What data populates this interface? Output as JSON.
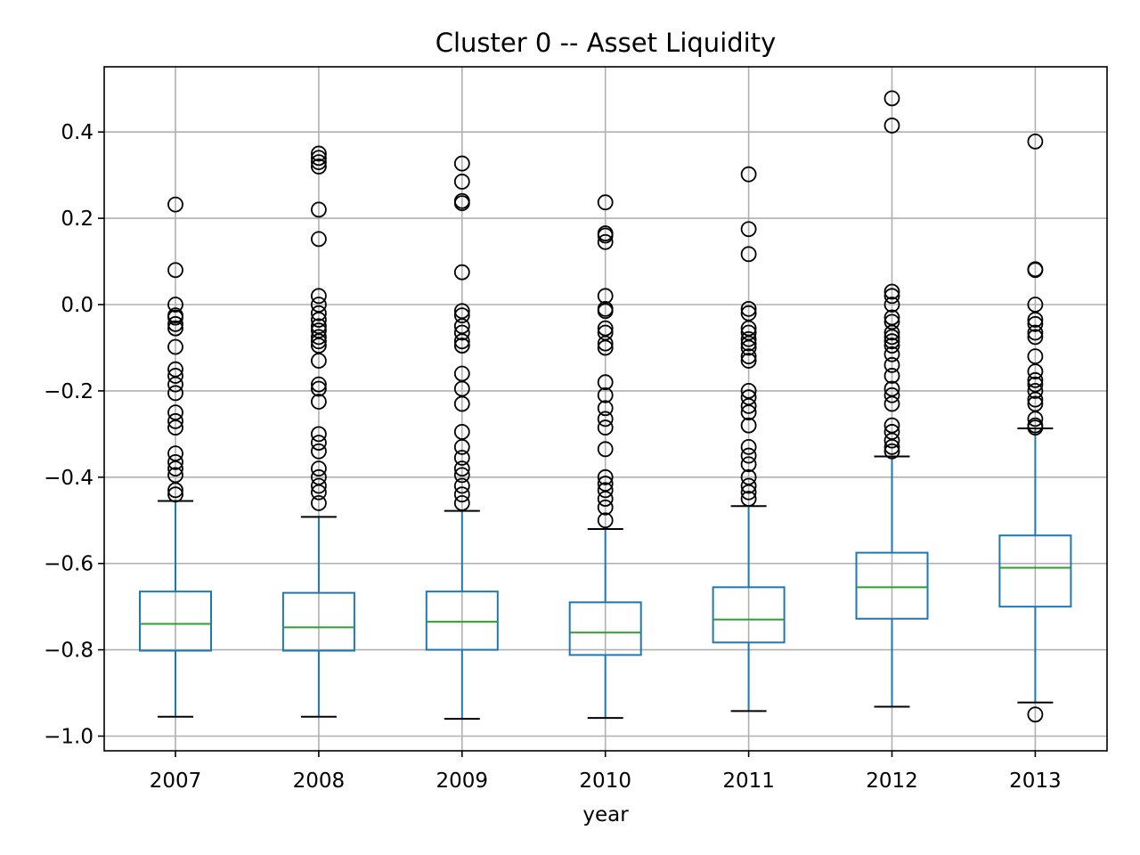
{
  "chart_data": {
    "type": "box",
    "title": "Cluster 0 -- Asset Liquidity",
    "xlabel": "year",
    "ylabel": "",
    "ylim": [
      -1.03,
      0.55
    ],
    "yticks": [
      0.4,
      0.2,
      0.0,
      -0.2,
      -0.4,
      -0.6,
      -0.8,
      -1.0
    ],
    "ytick_labels": [
      "0.4",
      "0.2",
      "0.0",
      "−0.2",
      "−0.4",
      "−0.6",
      "−0.8",
      "−1.0"
    ],
    "grid": true,
    "colors": {
      "box": "#1f77b4",
      "median": "#2ca02c",
      "whisker_cap": "#000000",
      "flier": "#000000",
      "grid": "#b0b0b0"
    },
    "categories": [
      "2007",
      "2008",
      "2009",
      "2010",
      "2011",
      "2012",
      "2013"
    ],
    "boxes": [
      {
        "label": "2007",
        "whislo": -0.955,
        "q1": -0.802,
        "med": -0.74,
        "q3": -0.665,
        "whishi": -0.455,
        "fliers": [
          0.232,
          0.08,
          0.0,
          -0.025,
          -0.03,
          -0.045,
          -0.055,
          -0.098,
          -0.15,
          -0.165,
          -0.185,
          -0.205,
          -0.25,
          -0.27,
          -0.285,
          -0.345,
          -0.365,
          -0.38,
          -0.395,
          -0.43,
          -0.44
        ]
      },
      {
        "label": "2008",
        "whislo": -0.955,
        "q1": -0.802,
        "med": -0.748,
        "q3": -0.668,
        "whishi": -0.492,
        "fliers": [
          0.35,
          0.34,
          0.33,
          0.32,
          0.22,
          0.152,
          0.02,
          0.0,
          -0.02,
          -0.035,
          -0.05,
          -0.06,
          -0.075,
          -0.085,
          -0.095,
          -0.13,
          -0.185,
          -0.195,
          -0.225,
          -0.3,
          -0.32,
          -0.34,
          -0.38,
          -0.4,
          -0.42,
          -0.435,
          -0.46
        ]
      },
      {
        "label": "2009",
        "whislo": -0.96,
        "q1": -0.8,
        "med": -0.735,
        "q3": -0.665,
        "whishi": -0.478,
        "fliers": [
          0.327,
          0.285,
          0.24,
          0.235,
          0.075,
          -0.015,
          -0.025,
          -0.05,
          -0.065,
          -0.085,
          -0.095,
          -0.16,
          -0.195,
          -0.23,
          -0.295,
          -0.33,
          -0.355,
          -0.38,
          -0.395,
          -0.42,
          -0.44,
          -0.46
        ]
      },
      {
        "label": "2010",
        "whislo": -0.958,
        "q1": -0.812,
        "med": -0.76,
        "q3": -0.69,
        "whishi": -0.52,
        "fliers": [
          0.237,
          0.165,
          0.16,
          0.145,
          0.02,
          -0.01,
          -0.015,
          -0.055,
          -0.065,
          -0.09,
          -0.1,
          -0.18,
          -0.21,
          -0.24,
          -0.265,
          -0.285,
          -0.335,
          -0.4,
          -0.415,
          -0.43,
          -0.45,
          -0.47,
          -0.5
        ]
      },
      {
        "label": "2011",
        "whislo": -0.942,
        "q1": -0.783,
        "med": -0.73,
        "q3": -0.655,
        "whishi": -0.467,
        "fliers": [
          0.302,
          0.175,
          0.117,
          -0.01,
          -0.02,
          -0.055,
          -0.065,
          -0.08,
          -0.09,
          -0.1,
          -0.12,
          -0.13,
          -0.2,
          -0.215,
          -0.235,
          -0.25,
          -0.28,
          -0.33,
          -0.35,
          -0.37,
          -0.4,
          -0.42,
          -0.435,
          -0.45
        ]
      },
      {
        "label": "2012",
        "whislo": -0.932,
        "q1": -0.728,
        "med": -0.655,
        "q3": -0.575,
        "whishi": -0.352,
        "fliers": [
          0.478,
          0.415,
          0.03,
          0.02,
          0.0,
          -0.03,
          -0.04,
          -0.065,
          -0.075,
          -0.085,
          -0.095,
          -0.115,
          -0.14,
          -0.165,
          -0.195,
          -0.21,
          -0.23,
          -0.28,
          -0.295,
          -0.315,
          -0.33,
          -0.34
        ]
      },
      {
        "label": "2013",
        "whislo": -0.922,
        "q1": -0.7,
        "med": -0.61,
        "q3": -0.535,
        "whishi": -0.287,
        "fliers": [
          0.378,
          0.082,
          0.08,
          0.0,
          -0.035,
          -0.045,
          -0.065,
          -0.075,
          -0.12,
          -0.155,
          -0.175,
          -0.185,
          -0.2,
          -0.22,
          -0.23,
          -0.265,
          -0.28,
          -0.285,
          -0.95
        ]
      }
    ]
  }
}
